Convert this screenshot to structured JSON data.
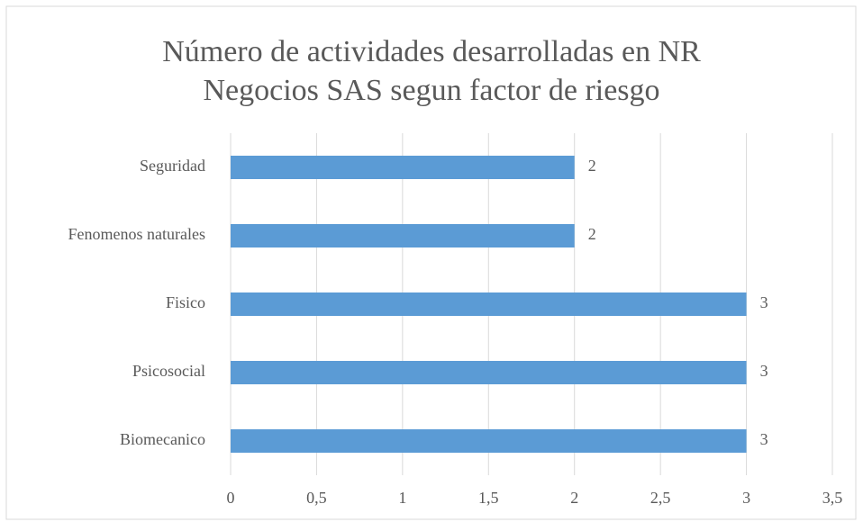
{
  "chart_data": {
    "type": "hbar",
    "title": [
      "Número de actividades desarrolladas en NR",
      "Negocios SAS segun factor de riesgo"
    ],
    "categories": [
      "Seguridad",
      "Fenomenos naturales",
      "Fisico",
      "Psicosocial",
      "Biomecanico"
    ],
    "values": [
      2,
      2,
      3,
      3,
      3
    ],
    "color": "#5b9bd5",
    "xlim": [
      0,
      3.5
    ],
    "xticks": [
      0,
      {
        "value": 0.5,
        "label": "0,5"
      },
      1,
      {
        "value": 1.5,
        "label": "1,5"
      },
      2,
      {
        "value": 2.5,
        "label": "2,5"
      },
      3,
      {
        "value": 3.5,
        "label": "3,5"
      }
    ],
    "grid": true
  }
}
